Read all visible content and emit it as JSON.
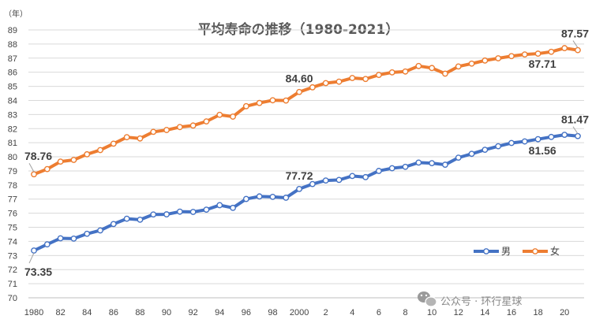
{
  "chart_data": {
    "type": "line",
    "title": "平均寿命の推移（1980-2021）",
    "unit_label": "（年）",
    "ylim": [
      70,
      89
    ],
    "y_ticks": [
      "70",
      "71",
      "72",
      "73",
      "74",
      "75",
      "76",
      "77",
      "78",
      "79",
      "80",
      "81",
      "82",
      "83",
      "84",
      "85",
      "86",
      "87",
      "88",
      "89"
    ],
    "x": [
      1980,
      1981,
      1982,
      1983,
      1984,
      1985,
      1986,
      1987,
      1988,
      1989,
      1990,
      1991,
      1992,
      1993,
      1994,
      1995,
      1996,
      1997,
      1998,
      1999,
      2000,
      2001,
      2002,
      2003,
      2004,
      2005,
      2006,
      2007,
      2008,
      2009,
      2010,
      2011,
      2012,
      2013,
      2014,
      2015,
      2016,
      2017,
      2018,
      2019,
      2020,
      2021
    ],
    "x_tick_labels": [
      "1980",
      "82",
      "84",
      "86",
      "88",
      "90",
      "92",
      "94",
      "96",
      "98",
      "2000",
      "2",
      "4",
      "6",
      "8",
      "10",
      "12",
      "14",
      "16",
      "18",
      "20"
    ],
    "grid": "horizontal",
    "legend_position": "bottom-right",
    "series": [
      {
        "name": "男",
        "color": "#4472C4",
        "values": [
          73.35,
          73.79,
          74.22,
          74.2,
          74.54,
          74.78,
          75.23,
          75.61,
          75.54,
          75.91,
          75.92,
          76.11,
          76.09,
          76.25,
          76.57,
          76.38,
          77.01,
          77.19,
          77.16,
          77.1,
          77.72,
          78.07,
          78.32,
          78.36,
          78.64,
          78.56,
          79.0,
          79.19,
          79.29,
          79.59,
          79.55,
          79.44,
          79.94,
          80.21,
          80.5,
          80.75,
          80.98,
          81.09,
          81.25,
          81.41,
          81.56,
          81.47
        ]
      },
      {
        "name": "女",
        "color": "#ED7D31",
        "values": [
          78.76,
          79.13,
          79.66,
          79.78,
          80.18,
          80.48,
          80.93,
          81.39,
          81.3,
          81.77,
          81.9,
          82.11,
          82.22,
          82.51,
          82.98,
          82.85,
          83.59,
          83.82,
          84.01,
          83.99,
          84.6,
          84.93,
          85.23,
          85.33,
          85.59,
          85.52,
          85.81,
          85.99,
          86.05,
          86.44,
          86.3,
          85.9,
          86.41,
          86.61,
          86.83,
          86.99,
          87.14,
          87.26,
          87.32,
          87.45,
          87.71,
          87.57
        ]
      }
    ],
    "data_labels": [
      {
        "series": 1,
        "x": 1980,
        "text": "78.76",
        "placement": "above"
      },
      {
        "series": 1,
        "x": 2000,
        "text": "84.60",
        "placement": "above"
      },
      {
        "series": 1,
        "x": 2020,
        "text": "87.71",
        "placement": "below"
      },
      {
        "series": 1,
        "x": 2021,
        "text": "87.57",
        "placement": "above"
      },
      {
        "series": 0,
        "x": 1980,
        "text": "73.35",
        "placement": "below"
      },
      {
        "series": 0,
        "x": 2000,
        "text": "77.72",
        "placement": "above"
      },
      {
        "series": 0,
        "x": 2020,
        "text": "81.56",
        "placement": "below"
      },
      {
        "series": 0,
        "x": 2021,
        "text": "81.47",
        "placement": "above"
      }
    ]
  },
  "watermark": {
    "icon": "wechat-icon",
    "text": "公众号 · 环行星球"
  }
}
